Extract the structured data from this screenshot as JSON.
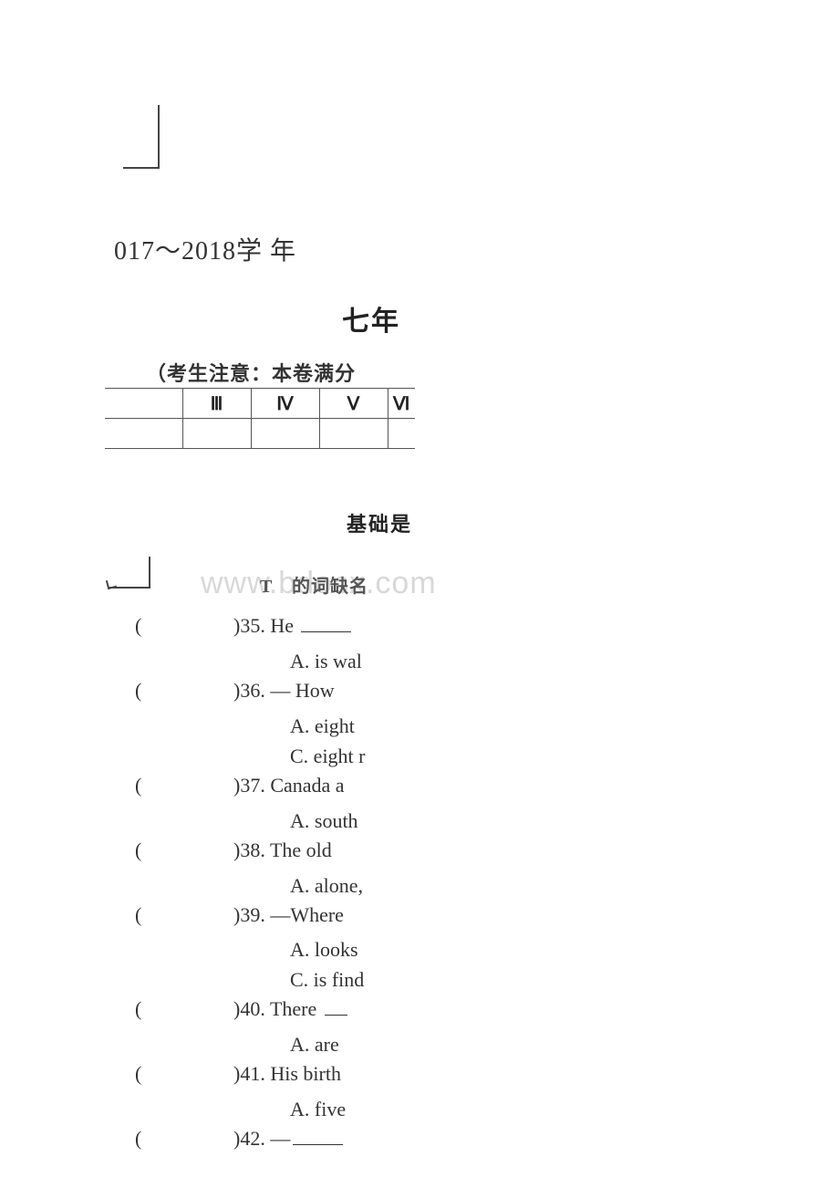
{
  "header": {
    "year_text": "017～2018学 年",
    "grade_text": "七年",
    "note_text": "（考生注意：本卷满分"
  },
  "table": {
    "headers": [
      "",
      "Ⅲ",
      "Ⅳ",
      "Ⅴ",
      "Ⅵ"
    ]
  },
  "sections": {
    "basic_title": "基础是",
    "vocab_label": "T　的词缺名"
  },
  "watermark": "www.bdocx.com",
  "questions": [
    {
      "num": "35",
      "stem": "He ",
      "blank": true,
      "opts": [
        "A. is wal"
      ]
    },
    {
      "num": "36",
      "stem": "— How",
      "opts": [
        "A. eight",
        "C. eight r"
      ]
    },
    {
      "num": "37",
      "stem": "Canada a",
      "opts": [
        "A. south"
      ]
    },
    {
      "num": "38",
      "stem": "The old",
      "opts": [
        "A. alone,"
      ]
    },
    {
      "num": "39",
      "stem": "—Where",
      "opts": [
        "A. looks",
        "C. is find"
      ]
    },
    {
      "num": "40",
      "stem": "There ",
      "blank_short": true,
      "opts": [
        "A. are"
      ]
    },
    {
      "num": "41",
      "stem": "His birth",
      "opts": [
        "A. five"
      ]
    },
    {
      "num": "42",
      "stem": "—",
      "blank": true,
      "opts": []
    }
  ]
}
